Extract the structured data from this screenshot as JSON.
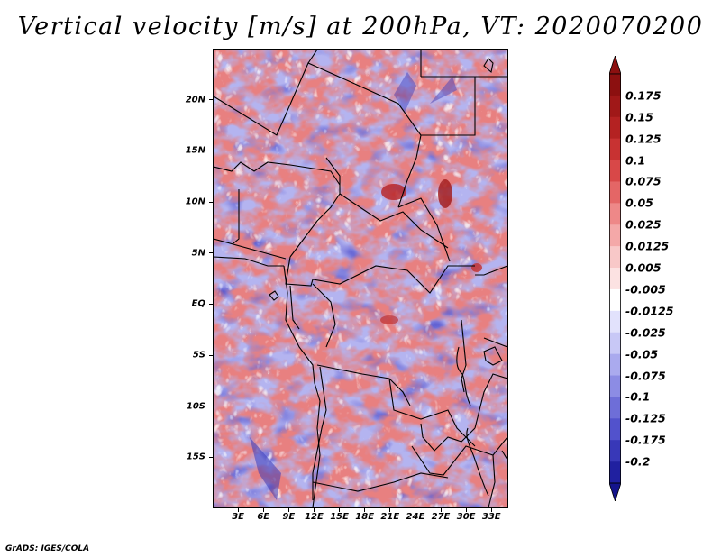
{
  "title": "Vertical velocity [m/s] at 200hPa, VT: 2020070200",
  "credit": "GrADS: IGES/COLA",
  "map": {
    "lon_range": [
      0,
      35
    ],
    "lat_range": [
      -20,
      25
    ],
    "lat_ticks": [
      {
        "value": 20,
        "label": "20N"
      },
      {
        "value": 15,
        "label": "15N"
      },
      {
        "value": 10,
        "label": "10N"
      },
      {
        "value": 5,
        "label": "5N"
      },
      {
        "value": 0,
        "label": "EQ"
      },
      {
        "value": -5,
        "label": "5S"
      },
      {
        "value": -10,
        "label": "10S"
      },
      {
        "value": -15,
        "label": "15S"
      }
    ],
    "lon_ticks": [
      {
        "value": 3,
        "label": "3E"
      },
      {
        "value": 6,
        "label": "6E"
      },
      {
        "value": 9,
        "label": "9E"
      },
      {
        "value": 12,
        "label": "12E"
      },
      {
        "value": 15,
        "label": "15E"
      },
      {
        "value": 18,
        "label": "18E"
      },
      {
        "value": 21,
        "label": "21E"
      },
      {
        "value": 24,
        "label": "24E"
      },
      {
        "value": 27,
        "label": "27E"
      },
      {
        "value": 30,
        "label": "30E"
      },
      {
        "value": 33,
        "label": "33E"
      }
    ]
  },
  "colorbar": {
    "levels": [
      {
        "label": "0.175",
        "color": "#a01818"
      },
      {
        "label": "0.15",
        "color": "#b42222"
      },
      {
        "label": "0.125",
        "color": "#c83232"
      },
      {
        "label": "0.1",
        "color": "#d84848"
      },
      {
        "label": "0.075",
        "color": "#e46666"
      },
      {
        "label": "0.05",
        "color": "#ee8888"
      },
      {
        "label": "0.025",
        "color": "#f4a8a8"
      },
      {
        "label": "0.0125",
        "color": "#f8c8c8"
      },
      {
        "label": "0.005",
        "color": "#fce2e2"
      },
      {
        "label": "-0.005",
        "color": "#ffffff"
      },
      {
        "label": "-0.0125",
        "color": "#e2e2fc"
      },
      {
        "label": "-0.025",
        "color": "#c8c8f6"
      },
      {
        "label": "-0.05",
        "color": "#aaaaee"
      },
      {
        "label": "-0.075",
        "color": "#8c8ce4"
      },
      {
        "label": "-0.1",
        "color": "#6e6ed8"
      },
      {
        "label": "-0.125",
        "color": "#5252cc"
      },
      {
        "label": "-0.175",
        "color": "#3838b8"
      },
      {
        "label": "-0.2",
        "color": "#2020a0"
      }
    ],
    "top_color": "#8c1010",
    "bottom_color": "#14148c"
  }
}
